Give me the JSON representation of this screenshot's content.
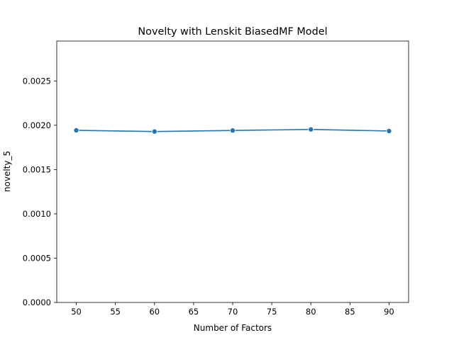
{
  "chart_data": {
    "type": "line",
    "title": "Novelty with Lenskit BiasedMF Model",
    "xlabel": "Number of Factors",
    "ylabel": "novelty_5",
    "xlim": [
      47.5,
      92.5
    ],
    "ylim": [
      0.0,
      0.00295
    ],
    "x_ticks": [
      50,
      55,
      60,
      65,
      70,
      75,
      80,
      85,
      90
    ],
    "x_tick_labels": [
      "50",
      "55",
      "60",
      "65",
      "70",
      "75",
      "80",
      "85",
      "90"
    ],
    "y_ticks": [
      0.0,
      0.0005,
      0.001,
      0.0015,
      0.002,
      0.0025
    ],
    "y_tick_labels": [
      "0.0000",
      "0.0005",
      "0.0010",
      "0.0015",
      "0.0020",
      "0.0025"
    ],
    "grid": false,
    "legend": "none",
    "series": [
      {
        "x": [
          50,
          60,
          70,
          80,
          90
        ],
        "values": [
          0.001943,
          0.001929,
          0.001941,
          0.001953,
          0.001935
        ],
        "color": "#1f77b4",
        "marker": "circle"
      }
    ]
  }
}
